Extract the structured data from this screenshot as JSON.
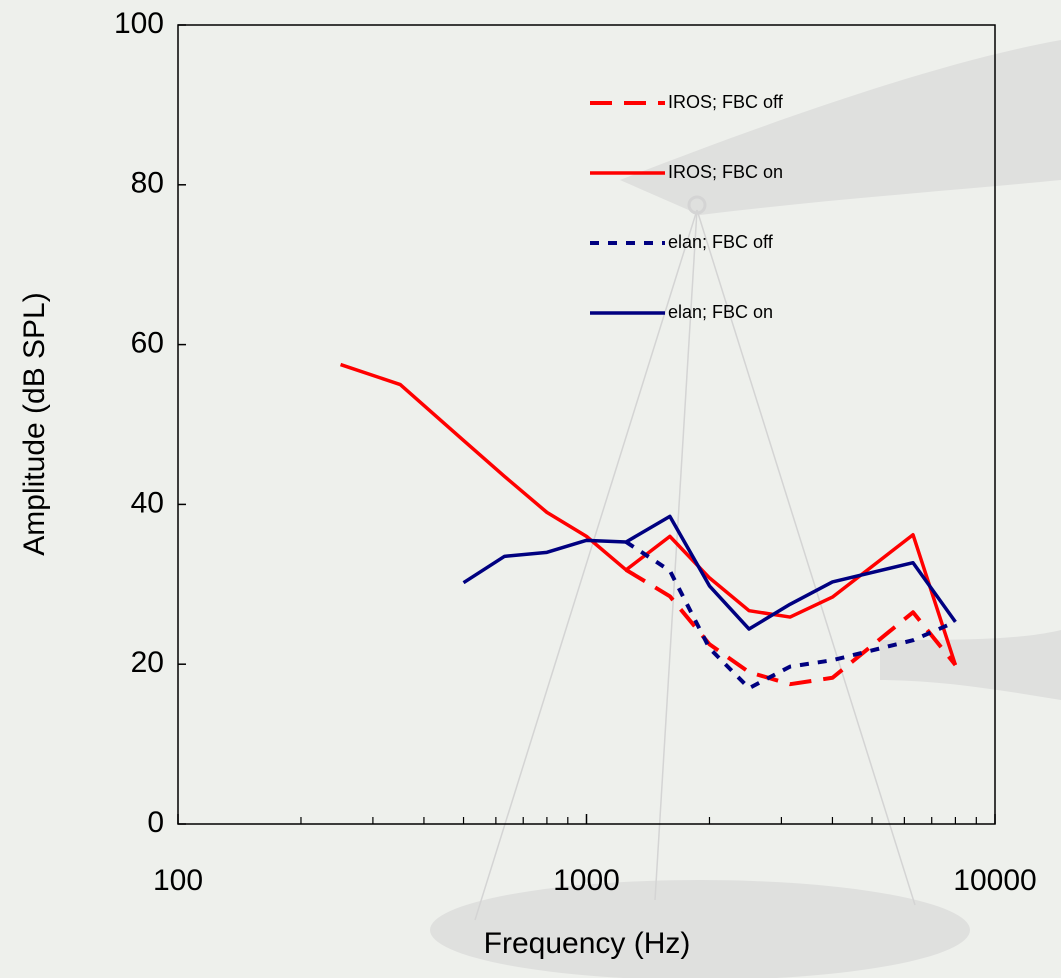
{
  "chart_data": {
    "type": "line",
    "xlabel": "Frequency (Hz)",
    "ylabel": "Amplitude (dB SPL)",
    "x": [
      250,
      350,
      500,
      630,
      800,
      1000,
      1250,
      1600,
      2000,
      2500,
      3150,
      4000,
      6300,
      8000
    ],
    "series": [
      {
        "name": "IROS; FBC off",
        "color": "#ff0000",
        "style": "dashed",
        "values": [
          null,
          null,
          null,
          null,
          null,
          null,
          31.8,
          28.5,
          22.5,
          19,
          17.5,
          18.3,
          26.5,
          19.9
        ]
      },
      {
        "name": "IROS; FBC on",
        "color": "#ff0000",
        "style": "solid",
        "values": [
          57.5,
          55,
          48,
          43.5,
          39,
          36,
          31.8,
          36,
          30.8,
          26.7,
          25.9,
          28.4,
          36.2,
          19.9
        ]
      },
      {
        "name": "elan; FBC off",
        "color": "#000080",
        "style": "dotted",
        "values": [
          null,
          null,
          null,
          null,
          null,
          null,
          35.3,
          31.7,
          22,
          17,
          19.7,
          20.5,
          23,
          25.3
        ]
      },
      {
        "name": "elan; FBC on",
        "color": "#000080",
        "style": "solid",
        "values": [
          null,
          null,
          30.2,
          33.5,
          34,
          35.5,
          35.3,
          38.5,
          29.8,
          24.4,
          27.5,
          30.3,
          32.7,
          25.3
        ]
      }
    ],
    "xscale": "log",
    "xlim": [
      100,
      10000
    ],
    "xticks": [
      100,
      1000,
      10000
    ],
    "ylim": [
      0,
      100
    ],
    "yticks": [
      0,
      20,
      40,
      60,
      80,
      100
    ],
    "grid": false,
    "legend": "upper right"
  }
}
